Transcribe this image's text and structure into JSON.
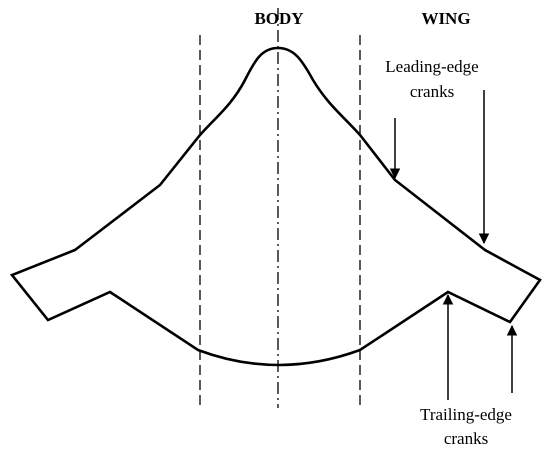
{
  "labels": {
    "body": "BODY",
    "wing": "WING"
  },
  "annotations": {
    "leading_edge": {
      "lines": [
        "Leading-edge",
        "cranks"
      ]
    },
    "trailing_edge": {
      "lines": [
        "Trailing-edge",
        "cranks"
      ]
    }
  }
}
